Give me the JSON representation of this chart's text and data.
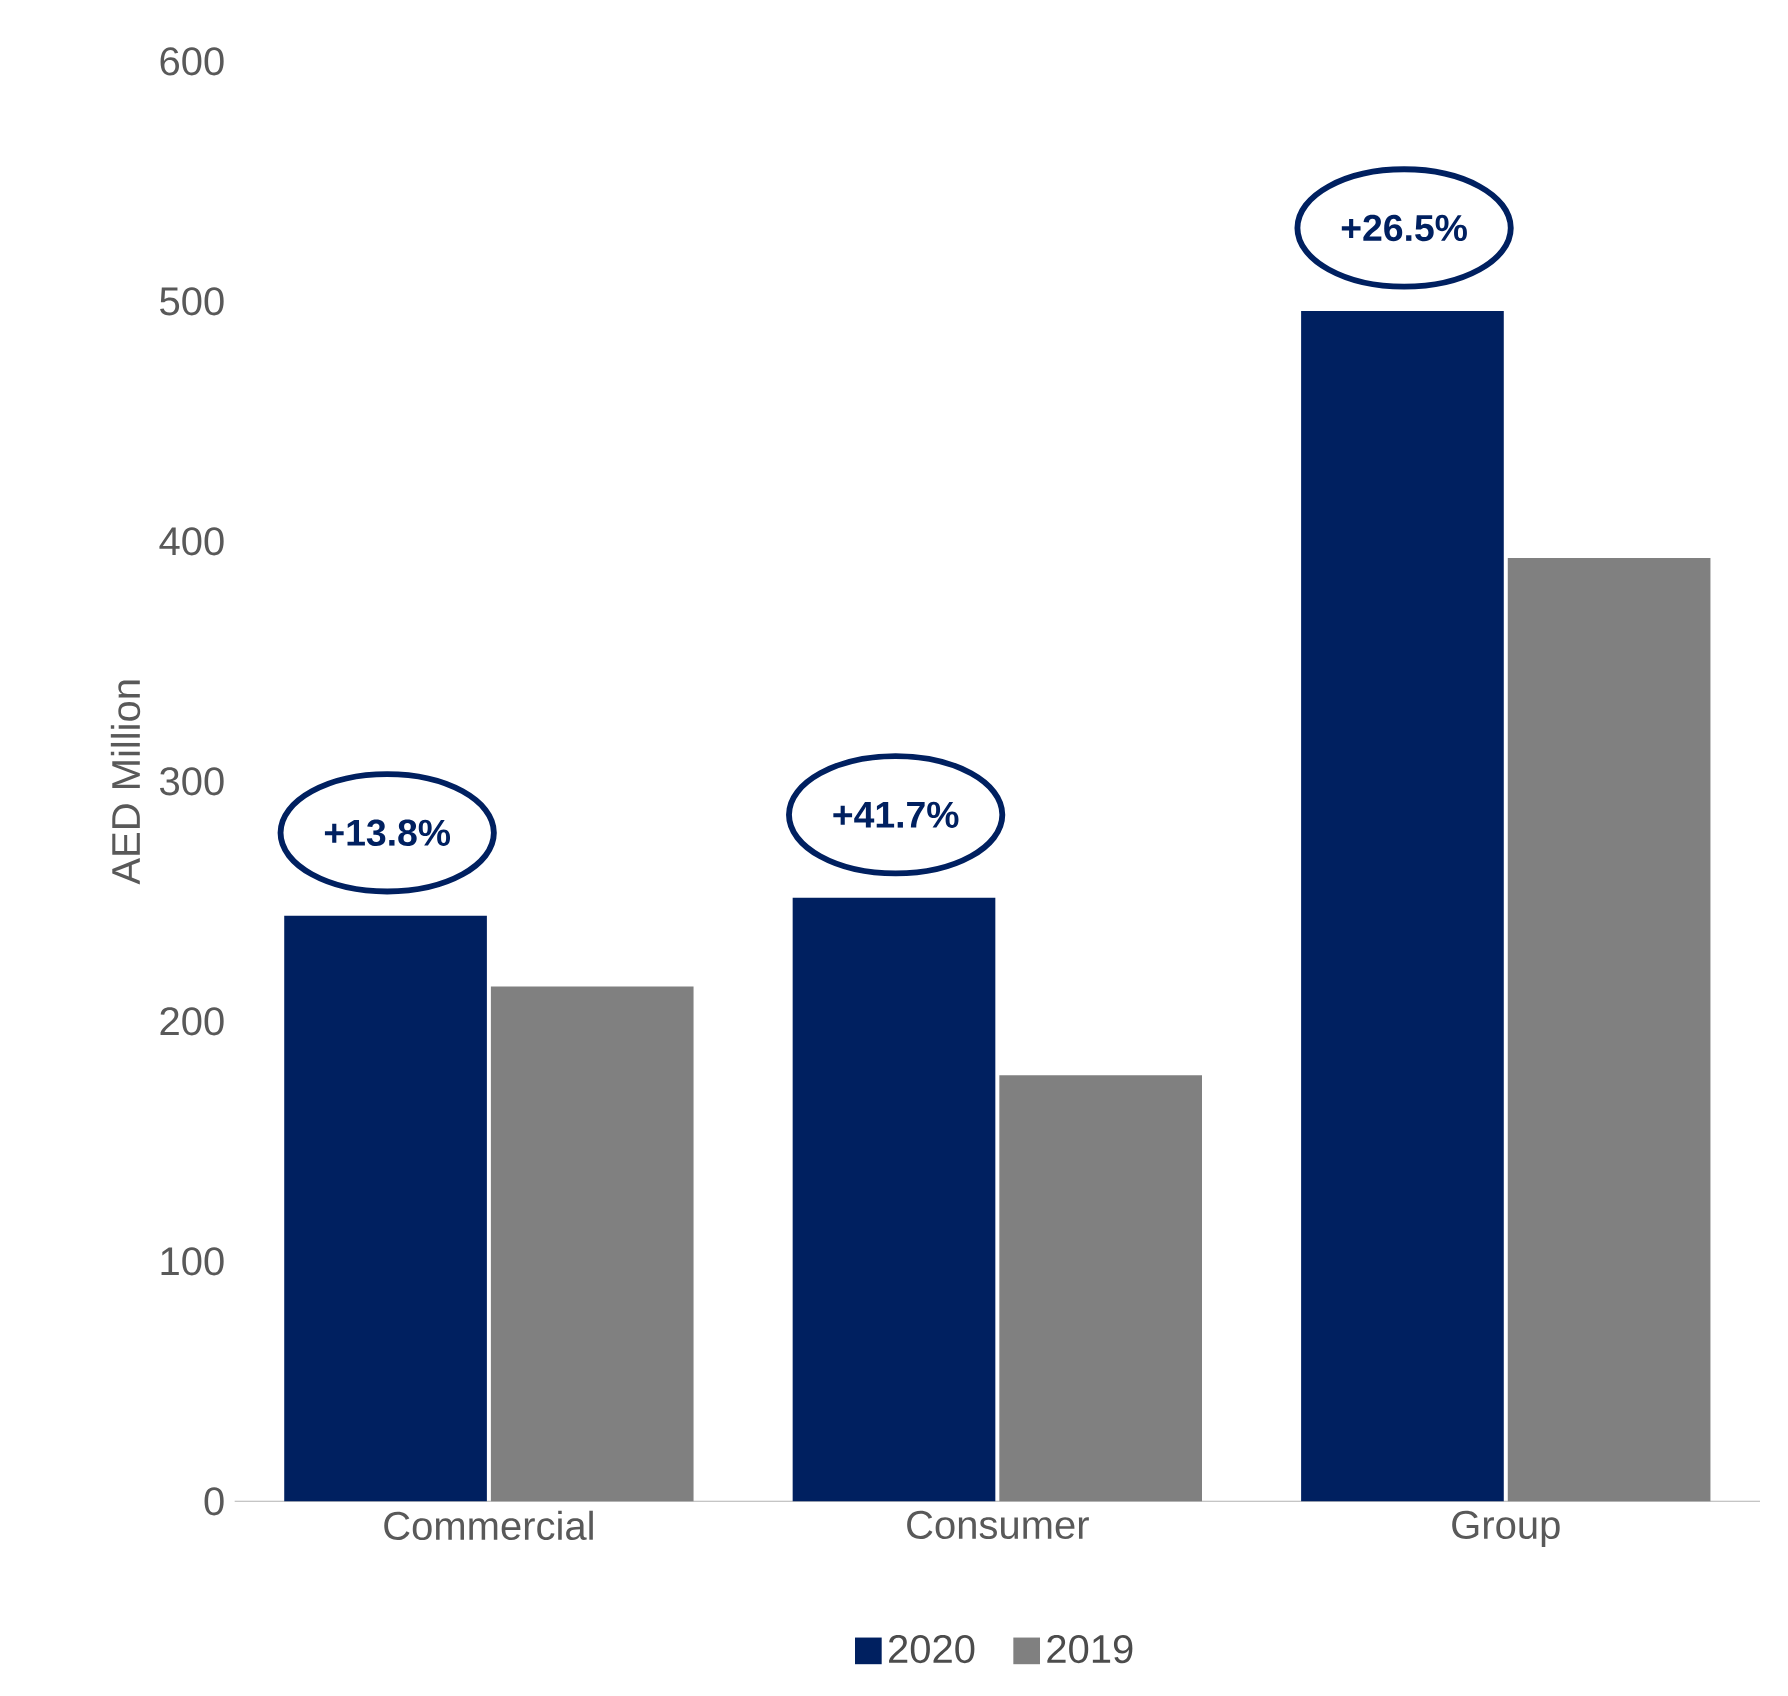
{
  "chart_data": {
    "type": "bar",
    "ylabel": "AED Million",
    "categories": [
      "Commercial",
      "Consumer",
      "Group"
    ],
    "series": [
      {
        "name": "2020",
        "color": "#002060",
        "values": [
          244,
          251.5,
          496
        ]
      },
      {
        "name": "2019",
        "color": "#808080",
        "values": [
          214.5,
          177.5,
          393
        ]
      }
    ],
    "ylim": [
      0,
      600
    ],
    "yticks": [
      0,
      100,
      200,
      300,
      400,
      500,
      600
    ],
    "grid": false,
    "legend": "bottom",
    "annotations": [
      "+13.8%",
      "+41.7%",
      "+26.5%"
    ]
  }
}
